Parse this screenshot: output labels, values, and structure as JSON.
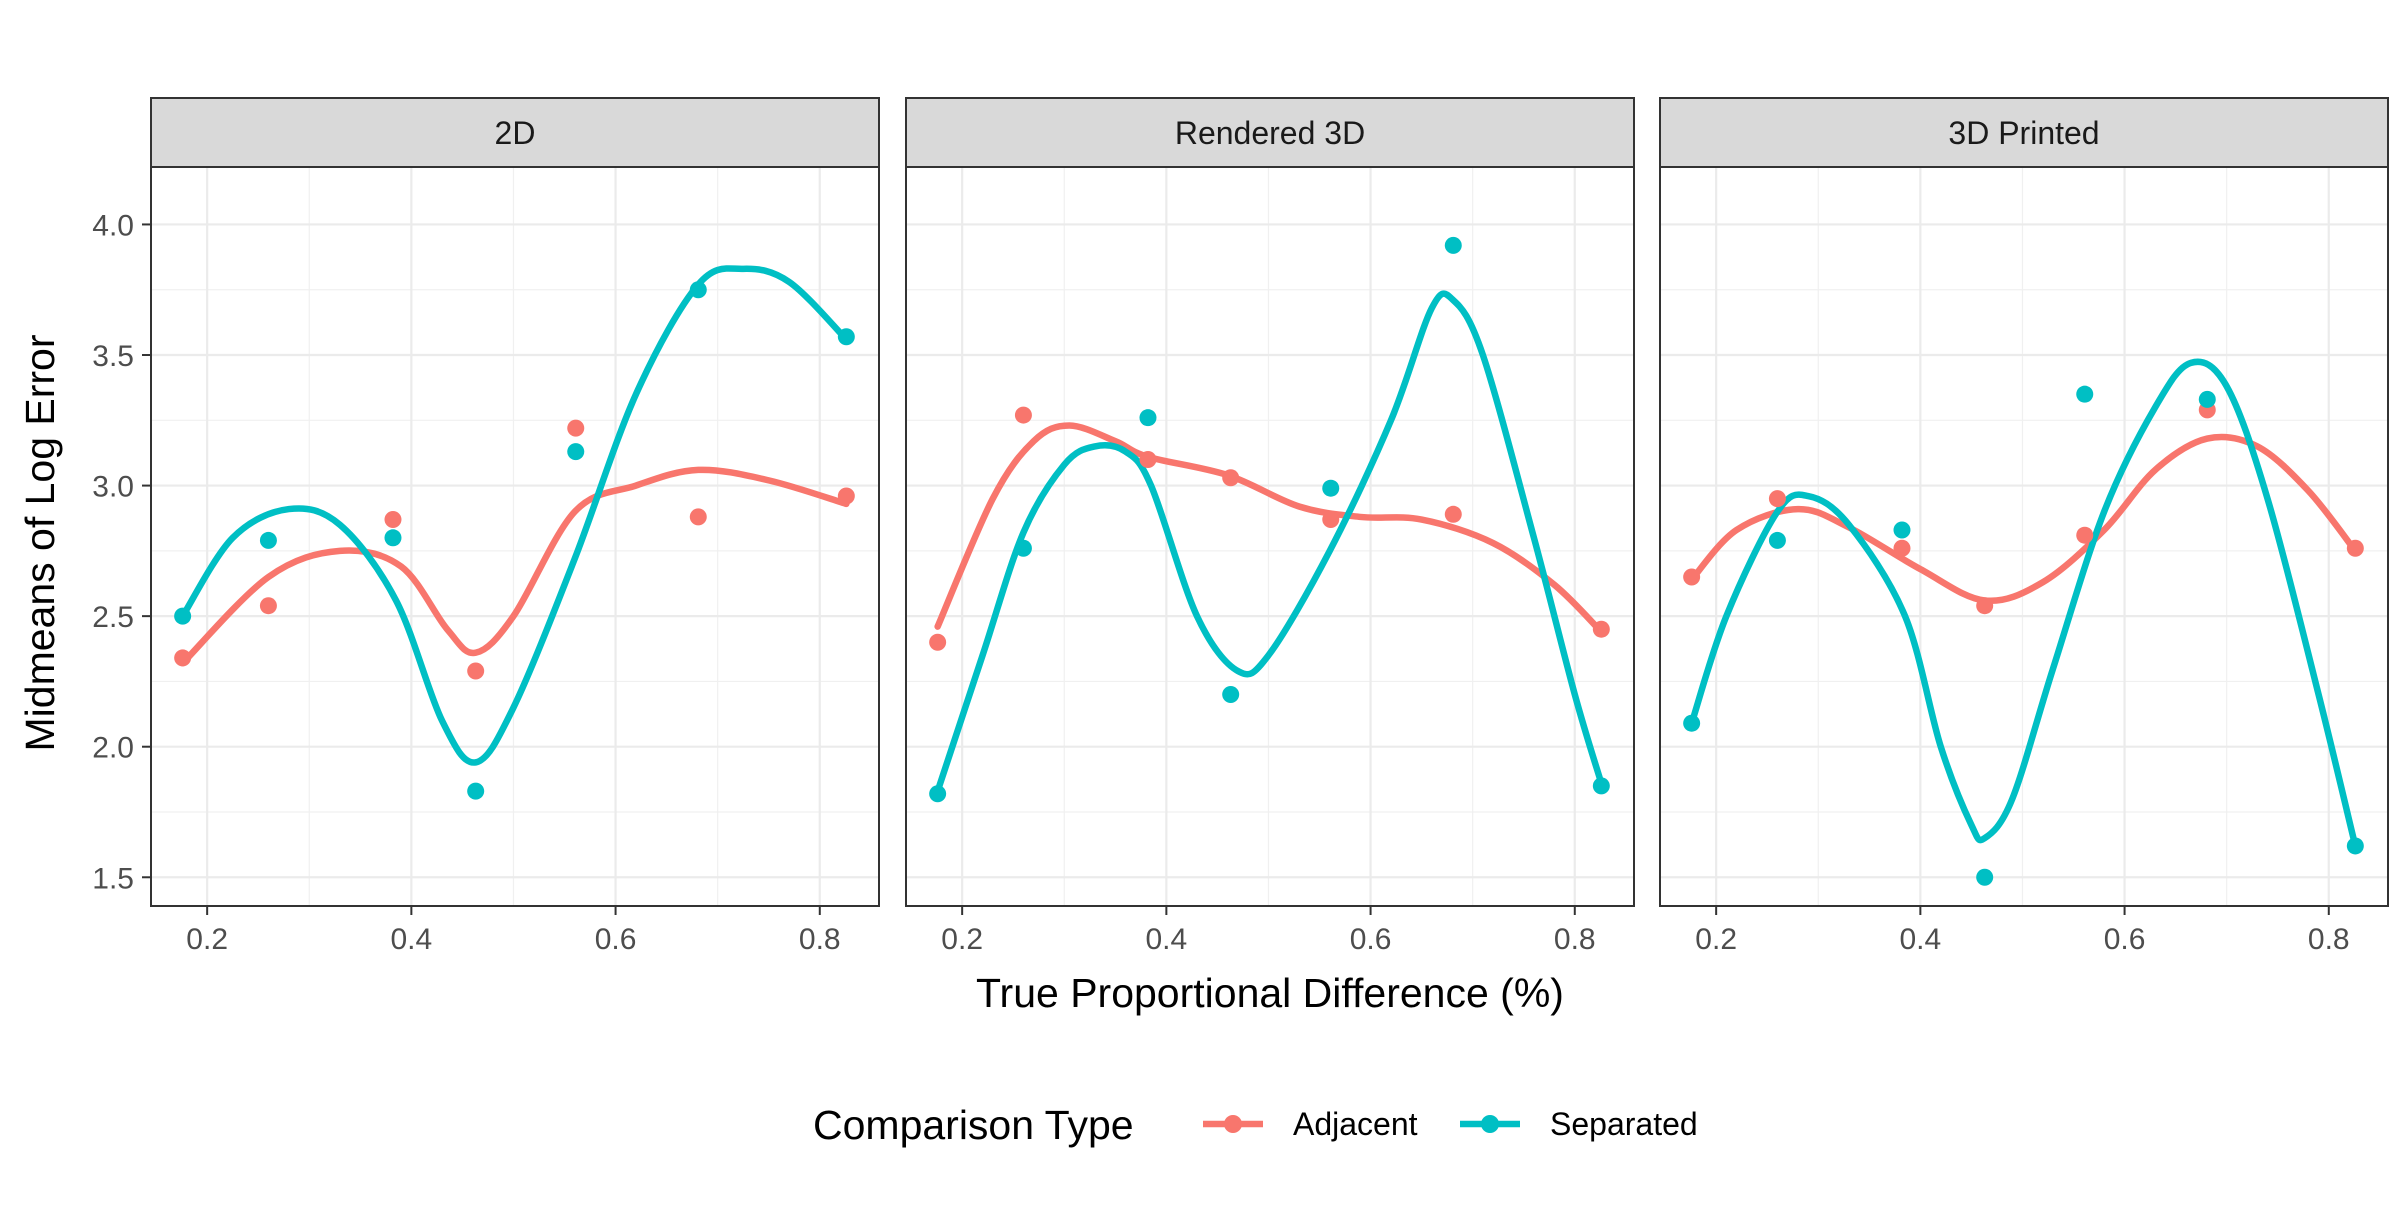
{
  "chart_data": {
    "type": "scatter",
    "panels": [
      "2D",
      "Rendered 3D",
      "3D Printed"
    ],
    "xlabel": "True Proportional Difference (%)",
    "ylabel": "Midmeans of Log Error",
    "xticks": [
      0.2,
      0.4,
      0.6,
      0.8
    ],
    "xtick_labels": [
      "0.2",
      "0.4",
      "0.6",
      "0.8"
    ],
    "yticks": [
      1.5,
      2.0,
      2.5,
      3.0,
      3.5,
      4.0
    ],
    "ytick_labels": [
      "1.5",
      "2.0",
      "2.5",
      "3.0",
      "3.5",
      "4.0"
    ],
    "xlim": [
      0.145,
      0.858
    ],
    "ylim": [
      1.39,
      4.22
    ],
    "grid": true,
    "legend": {
      "title": "Comparison Type",
      "position": "bottom",
      "entries": [
        "Adjacent",
        "Separated"
      ]
    },
    "colors": {
      "Adjacent": "#F8766D",
      "Separated": "#00BFC4"
    },
    "x": [
      0.176,
      0.26,
      0.382,
      0.463,
      0.561,
      0.681,
      0.826
    ],
    "series": [
      {
        "panel": "2D",
        "name": "Adjacent",
        "points": [
          2.34,
          2.54,
          2.87,
          2.29,
          3.22,
          2.88,
          2.96
        ],
        "smooth": [
          [
            0.176,
            2.32
          ],
          [
            0.26,
            2.65
          ],
          [
            0.33,
            2.75
          ],
          [
            0.39,
            2.69
          ],
          [
            0.435,
            2.45
          ],
          [
            0.463,
            2.36
          ],
          [
            0.5,
            2.5
          ],
          [
            0.56,
            2.9
          ],
          [
            0.62,
            3.0
          ],
          [
            0.681,
            3.06
          ],
          [
            0.75,
            3.02
          ],
          [
            0.826,
            2.93
          ]
        ]
      },
      {
        "panel": "2D",
        "name": "Separated",
        "points": [
          2.5,
          2.79,
          2.8,
          1.83,
          3.13,
          3.75,
          3.57
        ],
        "smooth": [
          [
            0.176,
            2.5
          ],
          [
            0.225,
            2.8
          ],
          [
            0.28,
            2.91
          ],
          [
            0.33,
            2.85
          ],
          [
            0.385,
            2.56
          ],
          [
            0.43,
            2.1
          ],
          [
            0.463,
            1.94
          ],
          [
            0.5,
            2.15
          ],
          [
            0.56,
            2.72
          ],
          [
            0.62,
            3.35
          ],
          [
            0.681,
            3.77
          ],
          [
            0.725,
            3.83
          ],
          [
            0.77,
            3.78
          ],
          [
            0.826,
            3.56
          ]
        ]
      },
      {
        "panel": "Rendered 3D",
        "name": "Adjacent",
        "points": [
          2.4,
          3.27,
          3.1,
          3.03,
          2.87,
          2.89,
          2.45
        ],
        "smooth": [
          [
            0.176,
            2.46
          ],
          [
            0.23,
            2.95
          ],
          [
            0.27,
            3.17
          ],
          [
            0.305,
            3.23
          ],
          [
            0.35,
            3.17
          ],
          [
            0.382,
            3.11
          ],
          [
            0.46,
            3.04
          ],
          [
            0.53,
            2.92
          ],
          [
            0.59,
            2.88
          ],
          [
            0.65,
            2.87
          ],
          [
            0.72,
            2.78
          ],
          [
            0.78,
            2.62
          ],
          [
            0.826,
            2.44
          ]
        ]
      },
      {
        "panel": "Rendered 3D",
        "name": "Separated",
        "points": [
          1.82,
          2.76,
          3.26,
          2.2,
          2.99,
          3.92,
          1.85
        ],
        "smooth": [
          [
            0.176,
            1.83
          ],
          [
            0.22,
            2.35
          ],
          [
            0.26,
            2.82
          ],
          [
            0.3,
            3.08
          ],
          [
            0.33,
            3.15
          ],
          [
            0.36,
            3.13
          ],
          [
            0.385,
            3.0
          ],
          [
            0.43,
            2.5
          ],
          [
            0.47,
            2.29
          ],
          [
            0.5,
            2.35
          ],
          [
            0.56,
            2.75
          ],
          [
            0.62,
            3.25
          ],
          [
            0.66,
            3.68
          ],
          [
            0.681,
            3.71
          ],
          [
            0.71,
            3.5
          ],
          [
            0.76,
            2.8
          ],
          [
            0.8,
            2.2
          ],
          [
            0.826,
            1.86
          ]
        ]
      },
      {
        "panel": "3D Printed",
        "name": "Adjacent",
        "points": [
          2.65,
          2.95,
          2.76,
          2.54,
          2.81,
          3.29,
          2.76
        ],
        "smooth": [
          [
            0.176,
            2.64
          ],
          [
            0.22,
            2.83
          ],
          [
            0.28,
            2.91
          ],
          [
            0.33,
            2.84
          ],
          [
            0.4,
            2.68
          ],
          [
            0.463,
            2.56
          ],
          [
            0.52,
            2.63
          ],
          [
            0.58,
            2.83
          ],
          [
            0.63,
            3.06
          ],
          [
            0.681,
            3.18
          ],
          [
            0.73,
            3.15
          ],
          [
            0.78,
            2.98
          ],
          [
            0.826,
            2.75
          ]
        ]
      },
      {
        "panel": "3D Printed",
        "name": "Separated",
        "points": [
          2.09,
          2.79,
          2.83,
          1.5,
          3.35,
          3.33,
          1.62
        ],
        "smooth": [
          [
            0.176,
            2.09
          ],
          [
            0.21,
            2.5
          ],
          [
            0.26,
            2.9
          ],
          [
            0.29,
            2.96
          ],
          [
            0.33,
            2.85
          ],
          [
            0.385,
            2.5
          ],
          [
            0.42,
            2.0
          ],
          [
            0.45,
            1.7
          ],
          [
            0.463,
            1.65
          ],
          [
            0.49,
            1.8
          ],
          [
            0.53,
            2.3
          ],
          [
            0.58,
            2.9
          ],
          [
            0.63,
            3.3
          ],
          [
            0.665,
            3.47
          ],
          [
            0.7,
            3.38
          ],
          [
            0.74,
            2.95
          ],
          [
            0.79,
            2.2
          ],
          [
            0.826,
            1.62
          ]
        ]
      }
    ]
  }
}
